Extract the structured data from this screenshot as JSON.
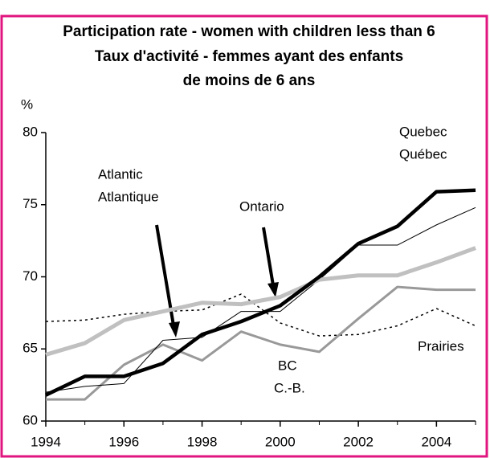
{
  "chart_data": {
    "type": "line",
    "title": [
      "Participation rate - women with children less than 6",
      "Taux d'activité - femmes ayant des enfants",
      "de moins de 6 ans"
    ],
    "ylabel": "%",
    "x": [
      1994,
      1995,
      1996,
      1997,
      1998,
      1999,
      2000,
      2001,
      2002,
      2003,
      2004,
      2005
    ],
    "xlim": [
      1994,
      2005
    ],
    "xticks": [
      1994,
      1996,
      1998,
      2000,
      2002,
      2004
    ],
    "ylim": [
      60,
      80
    ],
    "yticks": [
      60,
      65,
      70,
      75,
      80
    ],
    "grid": false,
    "series": [
      {
        "name": [
          "Quebec",
          "Québec"
        ],
        "color": "#000000",
        "values": [
          61.8,
          63.1,
          63.1,
          64.0,
          66.0,
          66.9,
          68.0,
          70.0,
          72.3,
          73.5,
          75.9,
          76.0
        ]
      },
      {
        "name": [
          "Ontario"
        ],
        "color": "#c0c0c0",
        "values": [
          64.6,
          65.4,
          67.0,
          67.6,
          68.2,
          68.1,
          68.6,
          69.8,
          70.1,
          70.1,
          71.0,
          72.0
        ]
      },
      {
        "name": [
          "Atlantic",
          "Atlantique"
        ],
        "color": "#000000",
        "values": [
          62.0,
          62.4,
          62.6,
          65.6,
          65.8,
          67.6,
          67.6,
          69.8,
          72.2,
          72.2,
          73.6,
          74.8
        ]
      },
      {
        "name": [
          "BC",
          "C.-B."
        ],
        "color": "#999999",
        "values": [
          61.5,
          61.5,
          63.9,
          65.3,
          64.2,
          66.2,
          65.3,
          64.8,
          67.1,
          69.3,
          69.1,
          69.1
        ]
      },
      {
        "name": [
          "Prairies"
        ],
        "color": "#000000",
        "dashed": true,
        "values": [
          66.9,
          67.0,
          67.4,
          67.6,
          67.7,
          68.8,
          66.8,
          65.9,
          66.0,
          66.6,
          67.8,
          66.6
        ]
      }
    ]
  }
}
